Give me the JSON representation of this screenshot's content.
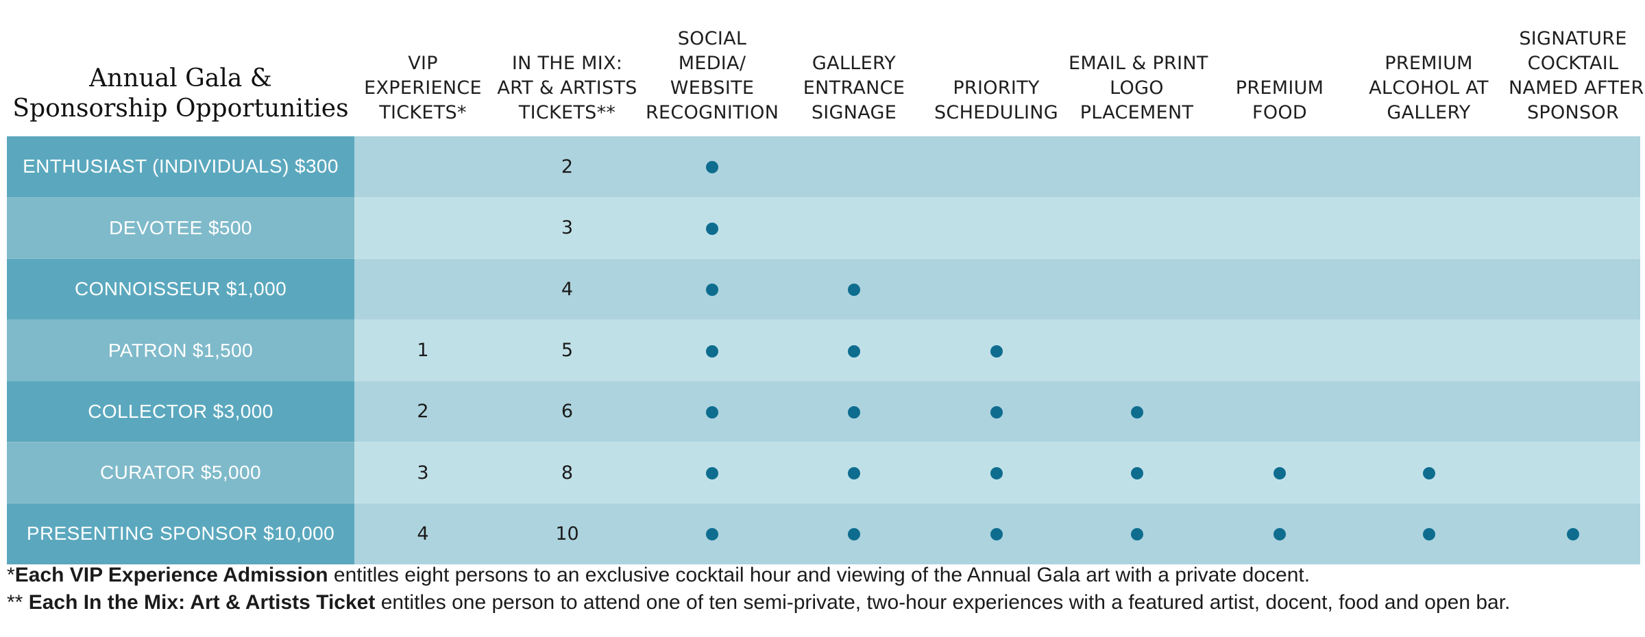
{
  "table": {
    "title_lines": [
      "Annual Gala &",
      "Sponsorship Opportunities"
    ],
    "columns": [
      {
        "key": "vip",
        "lines": [
          "VIP",
          "EXPERIENCE",
          "TICKETS*"
        ]
      },
      {
        "key": "mix",
        "lines": [
          "IN THE MIX:",
          "ART & ARTISTS",
          "TICKETS**"
        ]
      },
      {
        "key": "social",
        "lines": [
          "SOCIAL",
          "MEDIA/",
          "WEBSITE",
          "RECOGNITION"
        ]
      },
      {
        "key": "gallery",
        "lines": [
          "GALLERY",
          "ENTRANCE",
          "SIGNAGE"
        ]
      },
      {
        "key": "priority",
        "lines": [
          "PRIORITY",
          "SCHEDULING"
        ]
      },
      {
        "key": "email",
        "lines": [
          "EMAIL & PRINT",
          "LOGO",
          "PLACEMENT"
        ]
      },
      {
        "key": "food",
        "lines": [
          "PREMIUM",
          "FOOD"
        ]
      },
      {
        "key": "alcohol",
        "lines": [
          "PREMIUM",
          "ALCOHOL AT",
          "GALLERY"
        ]
      },
      {
        "key": "cocktail",
        "lines": [
          "SIGNATURE",
          "COCKTAIL",
          "NAMED AFTER",
          "SPONSOR"
        ]
      }
    ],
    "rows": [
      {
        "tier": "ENTHUSIAST (INDIVIDUALS) $300",
        "vip": "",
        "mix": "2",
        "social": true,
        "gallery": false,
        "priority": false,
        "email": false,
        "food": false,
        "alcohol": false,
        "cocktail": false
      },
      {
        "tier": "DEVOTEE $500",
        "vip": "",
        "mix": "3",
        "social": true,
        "gallery": false,
        "priority": false,
        "email": false,
        "food": false,
        "alcohol": false,
        "cocktail": false
      },
      {
        "tier": "CONNOISSEUR $1,000",
        "vip": "",
        "mix": "4",
        "social": true,
        "gallery": true,
        "priority": false,
        "email": false,
        "food": false,
        "alcohol": false,
        "cocktail": false
      },
      {
        "tier": "PATRON $1,500",
        "vip": "1",
        "mix": "5",
        "social": true,
        "gallery": true,
        "priority": true,
        "email": false,
        "food": false,
        "alcohol": false,
        "cocktail": false
      },
      {
        "tier": "COLLECTOR $3,000",
        "vip": "2",
        "mix": "6",
        "social": true,
        "gallery": true,
        "priority": true,
        "email": true,
        "food": false,
        "alcohol": false,
        "cocktail": false
      },
      {
        "tier": "CURATOR $5,000",
        "vip": "3",
        "mix": "8",
        "social": true,
        "gallery": true,
        "priority": true,
        "email": true,
        "food": true,
        "alcohol": true,
        "cocktail": false
      },
      {
        "tier": "PRESENTING SPONSOR $10,000",
        "vip": "4",
        "mix": "10",
        "social": true,
        "gallery": true,
        "priority": true,
        "email": true,
        "food": true,
        "alcohol": true,
        "cocktail": true
      }
    ]
  },
  "footnotes": [
    {
      "prefix": "*",
      "bold": "Each VIP Experience Admission",
      "rest": " entitles eight persons to an exclusive cocktail hour and viewing of the Annual Gala art with a private docent."
    },
    {
      "prefix": "** ",
      "bold": "Each In the Mix: Art & Artists Ticket",
      "rest": " entitles one person to attend one of ten semi-private, two-hour experiences with a featured artist, docent, food and open bar."
    }
  ],
  "colors": {
    "tier_dark": "#5ba8be",
    "tier_light": "#7fbaca",
    "row_dark": "#add3de",
    "row_light": "#c0e0e8",
    "dot": "#0e6d8f"
  },
  "icons": {
    "benefit_marker": "filled-circle-dot"
  }
}
